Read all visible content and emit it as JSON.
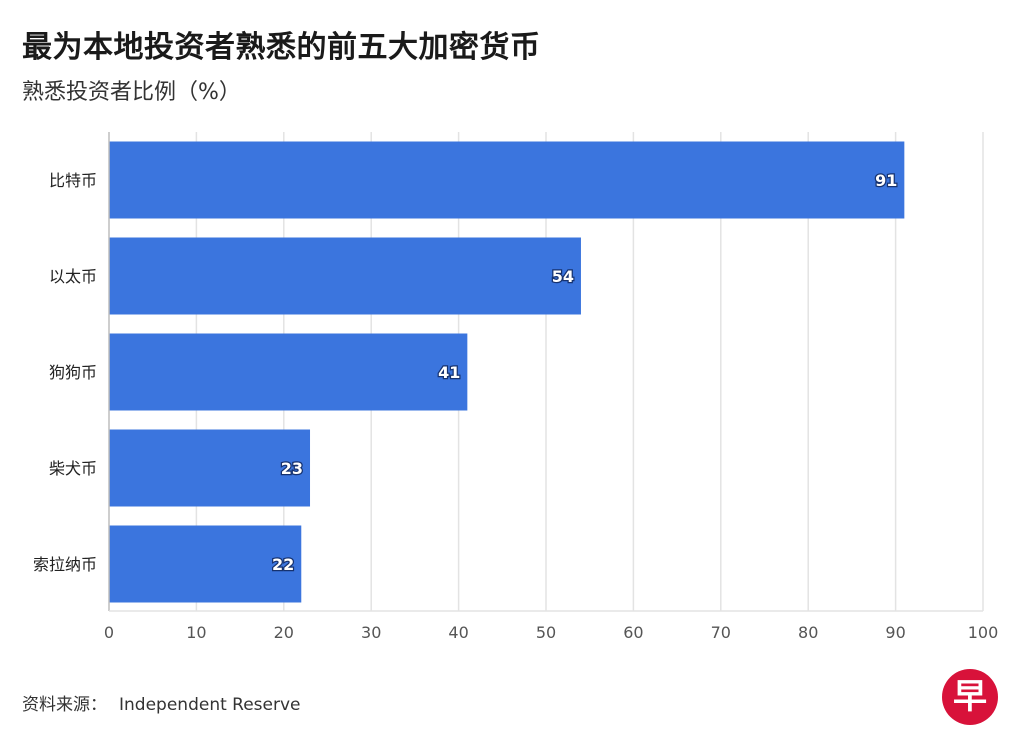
{
  "title": "最为本地投资者熟悉的前五大加密货币",
  "subtitle": "熟悉投资者比例（%）",
  "source": {
    "label": "资料来源：",
    "name": "Independent Reserve"
  },
  "logo": {
    "text": "早",
    "color": "#d8123a"
  },
  "colors": {
    "bar": "#3b75de",
    "grid": "#e3e3e3",
    "axis": "#bdbdbd"
  },
  "chart_data": {
    "type": "bar",
    "orientation": "horizontal",
    "title": "最为本地投资者熟悉的前五大加密货币",
    "subtitle": "熟悉投资者比例（%）",
    "categories": [
      "比特币",
      "以太币",
      "狗狗币",
      "柴犬币",
      "索拉纳币"
    ],
    "values": [
      91,
      54,
      41,
      23,
      22
    ],
    "data_labels": [
      "91",
      "54",
      "41",
      "23",
      "22"
    ],
    "xlim": [
      0,
      100
    ],
    "xticks": [
      0,
      10,
      20,
      30,
      40,
      50,
      60,
      70,
      80,
      90,
      100
    ],
    "xtick_labels": [
      "0",
      "10",
      "20",
      "30",
      "40",
      "50",
      "60",
      "70",
      "80",
      "90",
      "100"
    ],
    "grid": "vertical",
    "legend": "none"
  }
}
